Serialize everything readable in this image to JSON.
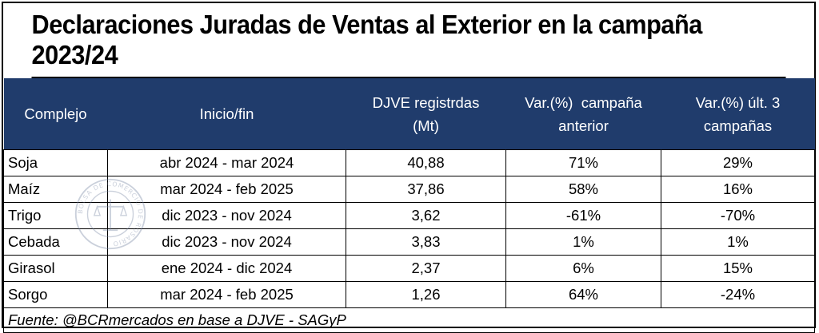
{
  "title": "Declaraciones Juradas de Ventas al Exterior en la campaña 2023/24",
  "headers": {
    "col1": "Complejo",
    "col2": "Inicio/fin",
    "col3_line1": "DJVE registrdas",
    "col3_line2": "(Mt)",
    "col4_line1": "Var.(%)  campaña",
    "col4_line2": "anterior",
    "col5_line1": "Var.(%) últ. 3",
    "col5_line2": "campañas"
  },
  "rows": [
    {
      "complejo": "Soja",
      "periodo": "abr 2024 - mar 2024",
      "djve": "40,88",
      "var_anterior": "71%",
      "var_3": "29%"
    },
    {
      "complejo": "Maíz",
      "periodo": "mar 2024 - feb 2025",
      "djve": "37,86",
      "var_anterior": "58%",
      "var_3": "16%"
    },
    {
      "complejo": "Trigo",
      "periodo": "dic 2023 - nov 2024",
      "djve": "3,62",
      "var_anterior": "-61%",
      "var_3": "-70%"
    },
    {
      "complejo": "Cebada",
      "periodo": "dic 2023 - nov 2024",
      "djve": "3,83",
      "var_anterior": "1%",
      "var_3": "1%"
    },
    {
      "complejo": "Girasol",
      "periodo": "ene 2024 - dic 2024",
      "djve": "2,37",
      "var_anterior": "6%",
      "var_3": "15%"
    },
    {
      "complejo": "Sorgo",
      "periodo": "mar 2024 - feb 2025",
      "djve": "1,26",
      "var_anterior": "64%",
      "var_3": "-24%"
    }
  ],
  "source": "Fuente: @BCRmercados en base a DJVE - SAGyP",
  "watermark_text": "BOLSA DE COMERCIO DE ROSARIO",
  "colors": {
    "header_bg": "#203c6c",
    "header_text": "#ffffff"
  }
}
